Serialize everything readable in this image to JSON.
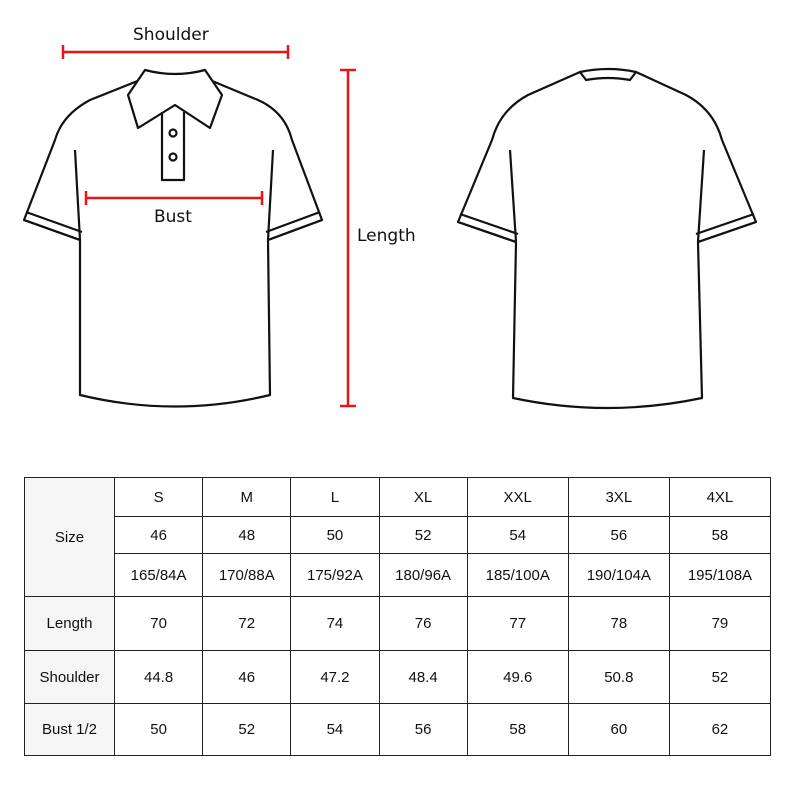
{
  "labels": {
    "shoulder": "Shoulder",
    "bust": "Bust",
    "length": "Length"
  },
  "colors": {
    "measure_line": "#e8141a",
    "outline": "#111111",
    "header_bg": "#f5f5f5"
  },
  "table": {
    "size_label": "Size",
    "sizes": [
      "S",
      "M",
      "L",
      "XL",
      "XXL",
      "3XL",
      "4XL"
    ],
    "eu": [
      "46",
      "48",
      "50",
      "52",
      "54",
      "56",
      "58"
    ],
    "height_chest": [
      "165/84A",
      "170/88A",
      "175/92A",
      "180/96A",
      "185/100A",
      "190/104A",
      "195/108A"
    ],
    "rows": [
      {
        "label": "Length",
        "values": [
          "70",
          "72",
          "74",
          "76",
          "77",
          "78",
          "79"
        ]
      },
      {
        "label": "Shoulder",
        "values": [
          "44.8",
          "46",
          "47.2",
          "48.4",
          "49.6",
          "50.8",
          "52"
        ]
      },
      {
        "label": "Bust 1/2",
        "values": [
          "50",
          "52",
          "54",
          "56",
          "58",
          "60",
          "62"
        ]
      }
    ]
  }
}
